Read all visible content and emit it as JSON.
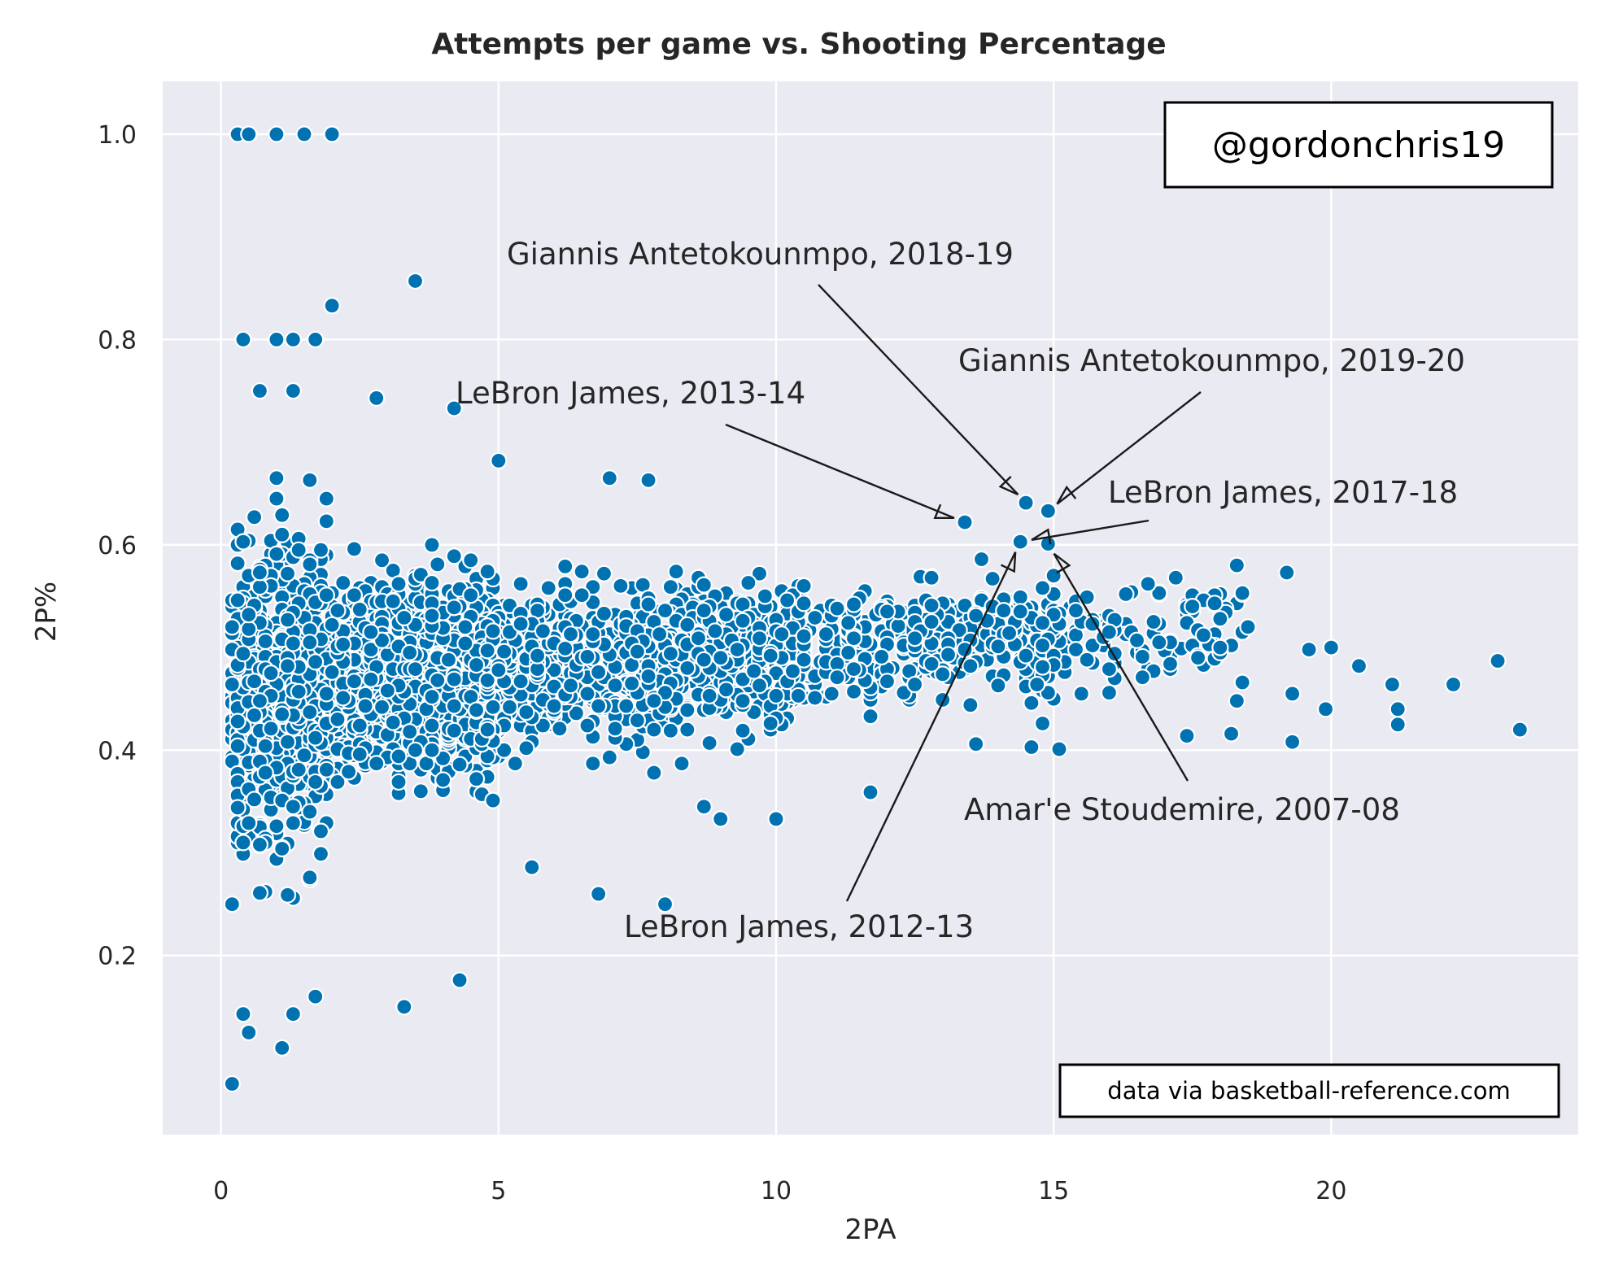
{
  "chart_data": {
    "type": "scatter",
    "title": "Attempts per game vs. Shooting Percentage",
    "xlabel": "2PA",
    "ylabel": "2P%",
    "xlim": [
      -1.05,
      24.45
    ],
    "ylim": [
      0.0255,
      1.0515
    ],
    "xticks": [
      0,
      5,
      10,
      15,
      20
    ],
    "xtick_labels": [
      "0",
      "5",
      "10",
      "15",
      "20"
    ],
    "yticks": [
      0.2,
      0.4,
      0.6,
      0.8,
      1.0
    ],
    "ytick_labels": [
      "0.2",
      "0.4",
      "0.6",
      "0.8",
      "1.0"
    ],
    "grid": true,
    "background": "#eaeaf2",
    "marker_color": "#0072b2",
    "marker_edge": "#ffffff",
    "highlighted_points": [
      {
        "x": 14.5,
        "y": 0.641
      },
      {
        "x": 14.9,
        "y": 0.633
      },
      {
        "x": 13.4,
        "y": 0.622
      },
      {
        "x": 14.4,
        "y": 0.603
      },
      {
        "x": 14.9,
        "y": 0.601
      }
    ],
    "outliers": [
      {
        "x": 0.3,
        "y": 1.0
      },
      {
        "x": 0.5,
        "y": 1.0
      },
      {
        "x": 1.0,
        "y": 1.0
      },
      {
        "x": 1.5,
        "y": 1.0
      },
      {
        "x": 2.0,
        "y": 1.0
      },
      {
        "x": 3.5,
        "y": 0.857
      },
      {
        "x": 2.0,
        "y": 0.833
      },
      {
        "x": 0.4,
        "y": 0.8
      },
      {
        "x": 1.0,
        "y": 0.8
      },
      {
        "x": 1.3,
        "y": 0.8
      },
      {
        "x": 1.7,
        "y": 0.8
      },
      {
        "x": 0.7,
        "y": 0.75
      },
      {
        "x": 1.3,
        "y": 0.75
      },
      {
        "x": 2.8,
        "y": 0.743
      },
      {
        "x": 4.2,
        "y": 0.733
      },
      {
        "x": 5.0,
        "y": 0.682
      },
      {
        "x": 7.0,
        "y": 0.665
      },
      {
        "x": 7.7,
        "y": 0.663
      },
      {
        "x": 0.2,
        "y": 0.075
      },
      {
        "x": 1.1,
        "y": 0.11
      },
      {
        "x": 0.5,
        "y": 0.125
      },
      {
        "x": 0.4,
        "y": 0.143
      },
      {
        "x": 1.3,
        "y": 0.143
      },
      {
        "x": 3.3,
        "y": 0.15
      },
      {
        "x": 4.3,
        "y": 0.176
      },
      {
        "x": 1.7,
        "y": 0.16
      },
      {
        "x": 8.0,
        "y": 0.25
      },
      {
        "x": 6.8,
        "y": 0.26
      },
      {
        "x": 5.6,
        "y": 0.286
      },
      {
        "x": 0.2,
        "y": 0.25
      },
      {
        "x": 11.7,
        "y": 0.359
      },
      {
        "x": 8.7,
        "y": 0.345
      },
      {
        "x": 9.0,
        "y": 0.333
      },
      {
        "x": 10.0,
        "y": 0.333
      },
      {
        "x": 18.3,
        "y": 0.58
      },
      {
        "x": 19.2,
        "y": 0.573
      },
      {
        "x": 20.0,
        "y": 0.5
      },
      {
        "x": 20.5,
        "y": 0.482
      },
      {
        "x": 21.2,
        "y": 0.44
      },
      {
        "x": 21.2,
        "y": 0.425
      },
      {
        "x": 21.1,
        "y": 0.464
      },
      {
        "x": 22.2,
        "y": 0.464
      },
      {
        "x": 23.0,
        "y": 0.487
      },
      {
        "x": 23.4,
        "y": 0.42
      },
      {
        "x": 19.3,
        "y": 0.408
      },
      {
        "x": 19.9,
        "y": 0.44
      },
      {
        "x": 18.2,
        "y": 0.416
      },
      {
        "x": 17.4,
        "y": 0.414
      },
      {
        "x": 16.9,
        "y": 0.553
      },
      {
        "x": 17.5,
        "y": 0.54
      },
      {
        "x": 16.7,
        "y": 0.562
      },
      {
        "x": 15.1,
        "y": 0.401
      },
      {
        "x": 14.6,
        "y": 0.403
      },
      {
        "x": 13.6,
        "y": 0.406
      },
      {
        "x": 19.6,
        "y": 0.498
      },
      {
        "x": 19.3,
        "y": 0.455
      },
      {
        "x": 18.5,
        "y": 0.52
      }
    ],
    "annotations": [
      {
        "text": "Giannis Antetokounmpo, 2018-19",
        "point": {
          "x": 14.5,
          "y": 0.641
        }
      },
      {
        "text": "Giannis Antetokounmpo, 2019-20",
        "point": {
          "x": 14.9,
          "y": 0.633
        }
      },
      {
        "text": "LeBron James, 2013-14",
        "point": {
          "x": 13.4,
          "y": 0.622
        }
      },
      {
        "text": "LeBron James, 2017-18",
        "point": {
          "x": 14.4,
          "y": 0.603
        }
      },
      {
        "text": "Amar'e Stoudemire, 2007-08",
        "point": {
          "x": 14.9,
          "y": 0.601
        }
      },
      {
        "text": "LeBron James, 2012-13",
        "point": {
          "x": 14.4,
          "y": 0.603
        }
      }
    ]
  },
  "watermark": "@gordonchris19",
  "credit": "data via basketball-reference.com"
}
